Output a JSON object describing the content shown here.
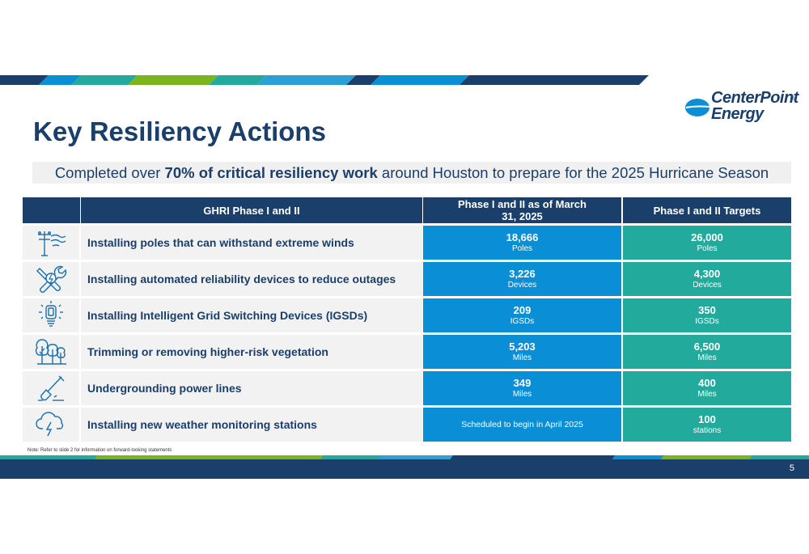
{
  "brand": {
    "logo_line1": "CenterPoint",
    "logo_line2": "Energy",
    "registered": "®",
    "colors": {
      "navy": "#1a3f6b",
      "blue": "#0a8fd6",
      "teal": "#22ab9c",
      "green": "#7ab51d",
      "light_blue": "#2a9fd8"
    }
  },
  "title": "Key Resiliency Actions",
  "subtitle": {
    "pre": "Completed over ",
    "bold": "70% of critical resiliency work",
    "post": " around Houston to prepare for the 2025 Hurricane Season"
  },
  "table": {
    "headers": [
      "GHRI Phase I and II",
      "Phase I and II as of March 31, 2025",
      "Phase I and II Targets"
    ],
    "rows": [
      {
        "icon": "utility-pole-icon",
        "label": "Installing poles that can withstand extreme winds",
        "progress_value": "18,666",
        "progress_unit": "Poles",
        "target_value": "26,000",
        "target_unit": "Poles"
      },
      {
        "icon": "wrench-screwdriver-icon",
        "label": "Installing automated reliability devices to reduce outages",
        "progress_value": "3,226",
        "progress_unit": "Devices",
        "target_value": "4,300",
        "target_unit": "Devices"
      },
      {
        "icon": "lightbulb-icon",
        "label": "Installing Intelligent Grid Switching Devices (IGSDs)",
        "progress_value": "209",
        "progress_unit": "IGSDs",
        "target_value": "350",
        "target_unit": "IGSDs"
      },
      {
        "icon": "trees-icon",
        "label": "Trimming or removing higher-risk vegetation",
        "progress_value": "5,203",
        "progress_unit": "Miles",
        "target_value": "6,500",
        "target_unit": "Miles"
      },
      {
        "icon": "shovel-icon",
        "label": "Undergrounding power lines",
        "progress_value": "349",
        "progress_unit": "Miles",
        "target_value": "400",
        "target_unit": "Miles"
      },
      {
        "icon": "storm-cloud-icon",
        "label": "Installing new weather monitoring stations",
        "progress_text": "Scheduled to begin in April 2025",
        "target_value": "100",
        "target_unit": "stations"
      }
    ]
  },
  "note": "Note: Refer to slide 2 for information on forward-looking statements",
  "page_number": "5"
}
